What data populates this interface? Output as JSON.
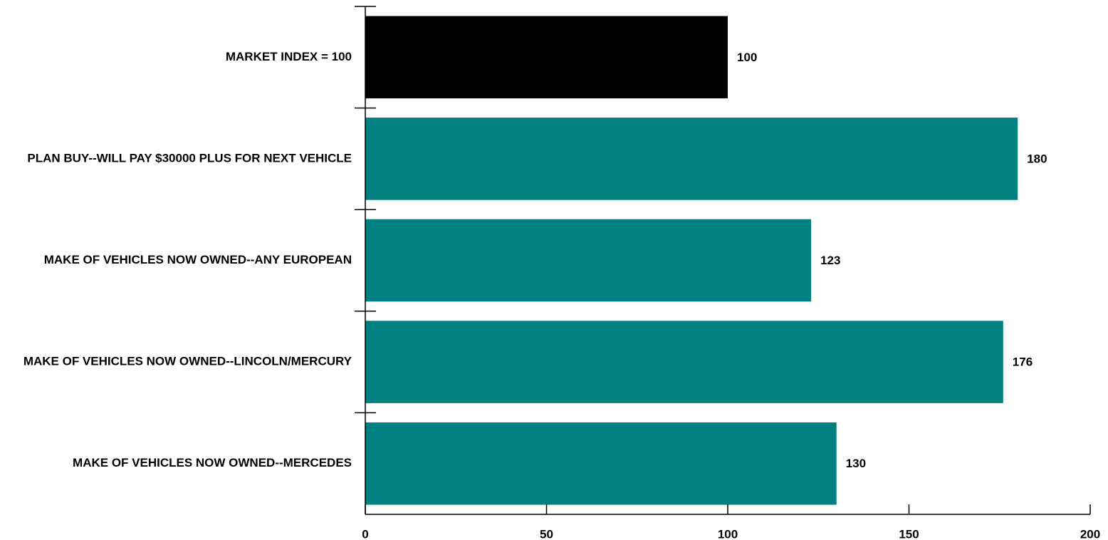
{
  "chart_data": {
    "type": "bar",
    "orientation": "horizontal",
    "categories": [
      "MARKET INDEX = 100",
      "PLAN BUY--WILL PAY $30000 PLUS FOR NEXT VEHICLE",
      "MAKE OF VEHICLES NOW OWNED--ANY EUROPEAN",
      "MAKE OF VEHICLES NOW OWNED--LINCOLN/MERCURY",
      "MAKE OF VEHICLES NOW OWNED--MERCEDES"
    ],
    "values": [
      100,
      180,
      123,
      176,
      130
    ],
    "data_labels": [
      "100",
      "180",
      "123",
      "176",
      "130"
    ],
    "bar_colors": [
      "#000000",
      "#008080",
      "#008080",
      "#008080",
      "#008080"
    ],
    "xlim": [
      0,
      200
    ],
    "x_ticks": [
      0,
      50,
      100,
      150,
      200
    ],
    "x_tick_labels": [
      "0",
      "50",
      "100",
      "150",
      "200"
    ],
    "grid": false,
    "legend": "none",
    "title": "",
    "xlabel": "",
    "ylabel": ""
  },
  "colors": {
    "baseline_bar": "#000000",
    "segment_bar": "#008080",
    "axis": "#000000",
    "text": "#000000"
  }
}
